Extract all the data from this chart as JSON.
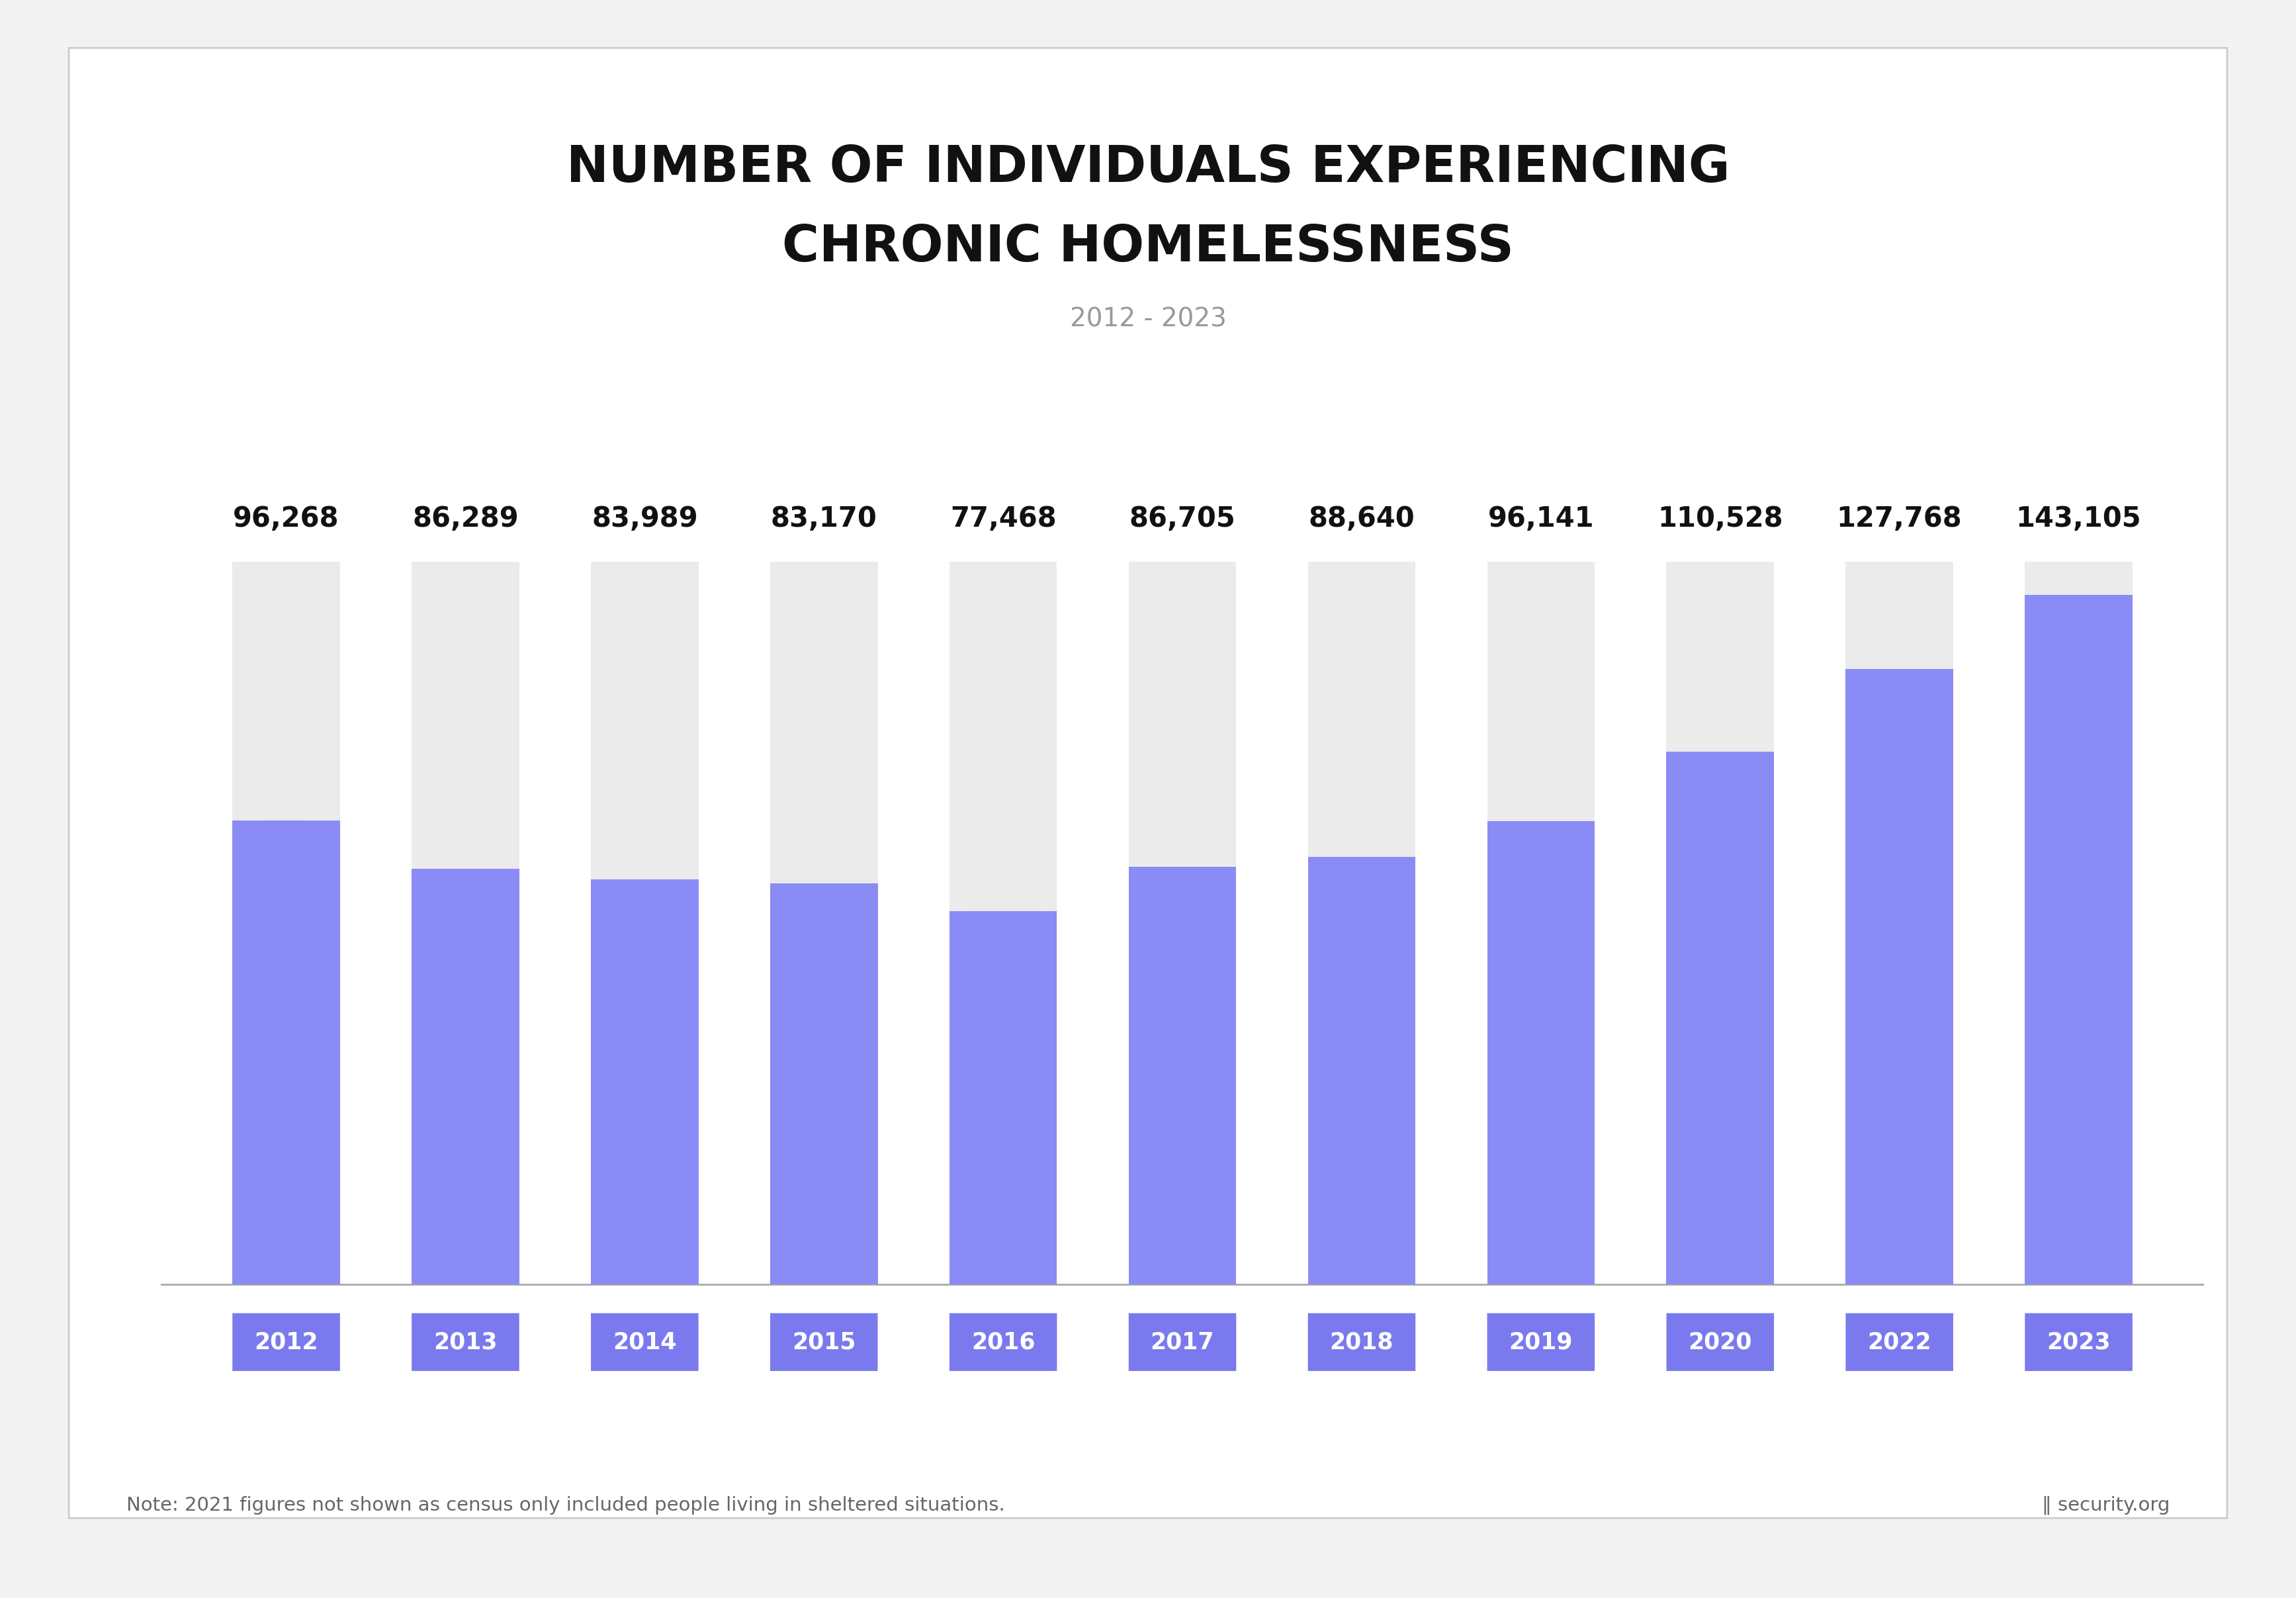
{
  "title_line1": "NUMBER OF INDIVIDUALS EXPERIENCING",
  "title_line2": "CHRONIC HOMELESSNESS",
  "subtitle": "2012 - 2023",
  "years": [
    "2012",
    "2013",
    "2014",
    "2015",
    "2016",
    "2017",
    "2018",
    "2019",
    "2020",
    "2022",
    "2023"
  ],
  "values": [
    96268,
    86289,
    83989,
    83170,
    77468,
    86705,
    88640,
    96141,
    110528,
    127768,
    143105
  ],
  "value_labels": [
    "96,268",
    "86,289",
    "83,989",
    "83,170",
    "77,468",
    "86,705",
    "88,640",
    "96,141",
    "110,528",
    "127,768",
    "143,105"
  ],
  "bar_color": "#8B8BF5",
  "bg_bar_color": "#EBEBEB",
  "year_label_bg": "#7A7AEE",
  "year_label_text": "#FFFFFF",
  "title_color": "#111111",
  "subtitle_color": "#999999",
  "value_color": "#111111",
  "note_text": "Note: 2021 figures not shown as census only included people living in sheltered situations.",
  "background_outer": "#F2F2F2",
  "background_card": "#FFFFFF",
  "max_value": 150000,
  "bar_width": 0.6
}
